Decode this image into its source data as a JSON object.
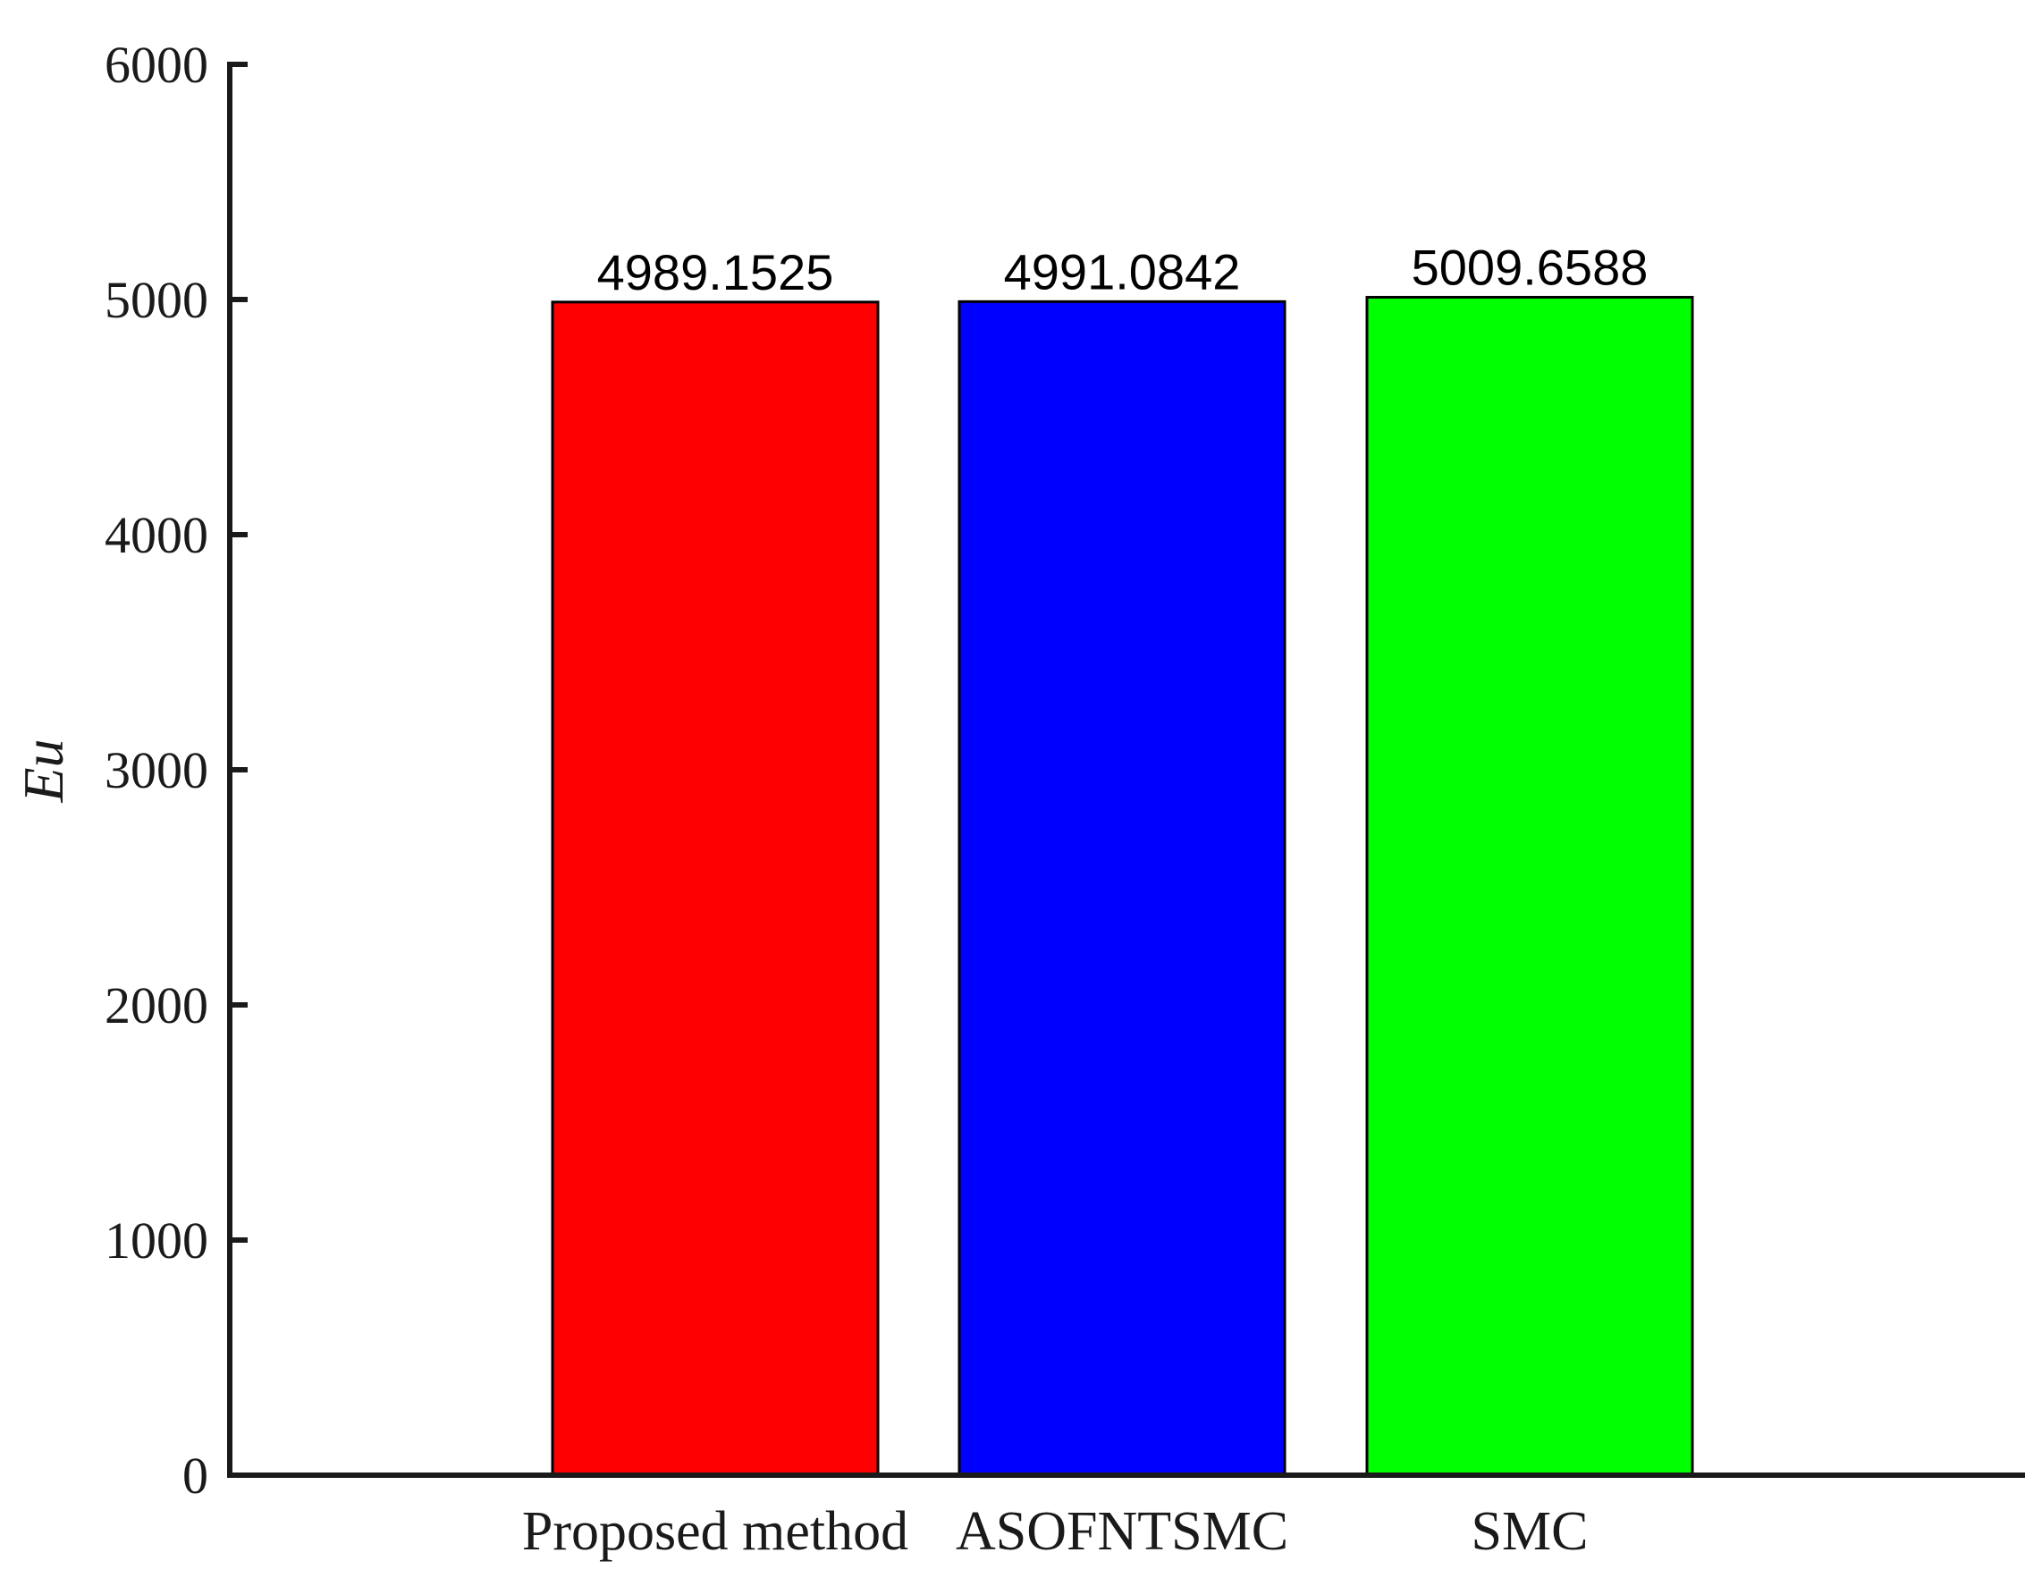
{
  "chart_data": {
    "type": "bar",
    "title": "",
    "xlabel": "",
    "ylabel": "Eu",
    "ylim": [
      0,
      6000
    ],
    "yticks": [
      0,
      1000,
      2000,
      3000,
      4000,
      5000,
      6000
    ],
    "categories": [
      "Proposed method",
      "ASOFNTSMC",
      "SMC"
    ],
    "values": [
      4989.1525,
      4991.0842,
      5009.6588
    ],
    "data_labels": [
      "4989.1525",
      "4991.0842",
      "5009.6588"
    ],
    "colors": [
      "#ff0000",
      "#0000ff",
      "#00ff00"
    ],
    "grid": false,
    "legend": "none"
  }
}
